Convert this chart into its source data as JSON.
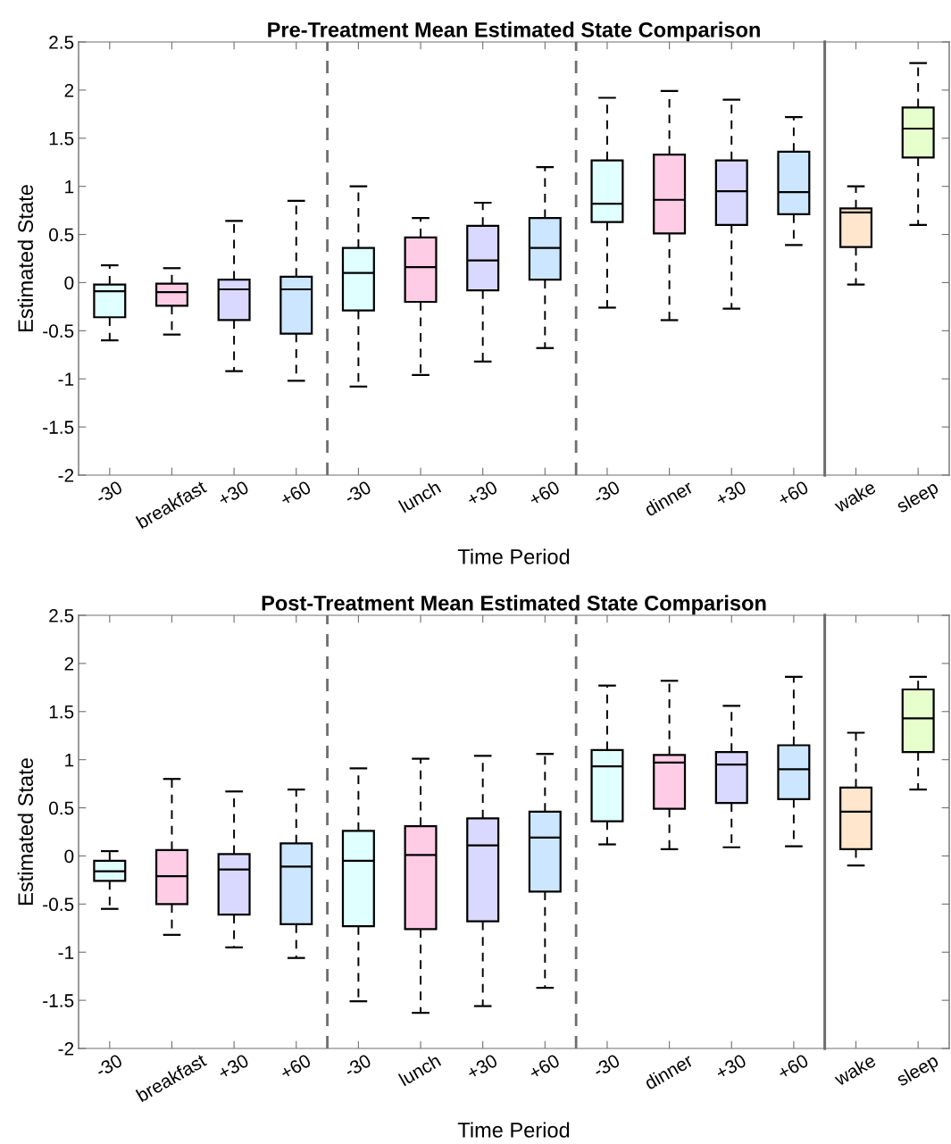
{
  "chart_data": [
    {
      "type": "box",
      "title": "Pre-Treatment Mean Estimated State Comparison",
      "xlabel": "Time Period",
      "ylabel": "Estimated State",
      "categories": [
        "-30",
        "breakfast",
        "+30",
        "+60",
        "-30",
        "lunch",
        "+30",
        "+60",
        "-30",
        "dinner",
        "+30",
        "+60"
      ],
      "colors": [
        "#e0ffff",
        "#ffcce6",
        "#d9d9ff",
        "#cce6ff",
        "#e0ffff",
        "#ffcce6",
        "#d9d9ff",
        "#cce6ff",
        "#e0ffff",
        "#ffcce6",
        "#d9d9ff",
        "#cce6ff"
      ],
      "boxes": [
        {
          "low": -0.6,
          "q1": -0.36,
          "median": -0.09,
          "q3": -0.02,
          "high": 0.18
        },
        {
          "low": -0.54,
          "q1": -0.24,
          "median": -0.1,
          "q3": -0.01,
          "high": 0.15
        },
        {
          "low": -0.92,
          "q1": -0.39,
          "median": -0.07,
          "q3": 0.03,
          "high": 0.64
        },
        {
          "low": -1.02,
          "q1": -0.53,
          "median": -0.07,
          "q3": 0.06,
          "high": 0.85
        },
        {
          "low": -1.08,
          "q1": -0.29,
          "median": 0.1,
          "q3": 0.36,
          "high": 1.0
        },
        {
          "low": -0.96,
          "q1": -0.2,
          "median": 0.16,
          "q3": 0.47,
          "high": 0.67
        },
        {
          "low": -0.82,
          "q1": -0.08,
          "median": 0.23,
          "q3": 0.59,
          "high": 0.83
        },
        {
          "low": -0.68,
          "q1": 0.03,
          "median": 0.36,
          "q3": 0.67,
          "high": 1.2
        },
        {
          "low": -0.26,
          "q1": 0.63,
          "median": 0.82,
          "q3": 1.27,
          "high": 1.92
        },
        {
          "low": -0.39,
          "q1": 0.51,
          "median": 0.86,
          "q3": 1.33,
          "high": 1.99
        },
        {
          "low": -0.27,
          "q1": 0.6,
          "median": 0.95,
          "q3": 1.27,
          "high": 1.9
        },
        {
          "low": 0.39,
          "q1": 0.71,
          "median": 0.94,
          "q3": 1.36,
          "high": 1.72
        }
      ],
      "ylim": [
        -2,
        2.5
      ],
      "yticks": [
        -2,
        -1.5,
        -1,
        -0.5,
        0,
        0.5,
        1,
        1.5,
        2,
        2.5
      ],
      "grid": false,
      "line_style": "dashed"
    },
    {
      "type": "box",
      "categories": [
        "wake",
        "sleep"
      ],
      "colors": [
        "#ffe6cc",
        "#e6ffcc"
      ],
      "boxes": [
        {
          "low": -0.02,
          "q1": 0.37,
          "median": 0.73,
          "q3": 0.77,
          "high": 1.0
        },
        {
          "low": 0.6,
          "q1": 1.3,
          "median": 1.6,
          "q3": 1.82,
          "high": 2.28
        }
      ],
      "ylim": [
        -2,
        2.5
      ],
      "yticks": [
        -2,
        -1.5,
        -1,
        -0.5,
        0,
        0.5,
        1,
        1.5,
        2,
        2.5
      ],
      "tick_labels": "x",
      "grid": false,
      "line_style": "dashed"
    },
    {
      "type": "box",
      "title": "Post-Treatment Mean Estimated State Comparison",
      "xlabel": "Time Period",
      "ylabel": "Estimated State",
      "categories": [
        "-30",
        "breakfast",
        "+30",
        "+60",
        "-30",
        "lunch",
        "+30",
        "+60",
        "-30",
        "dinner",
        "+30",
        "+60"
      ],
      "colors": [
        "#e0ffff",
        "#ffcce6",
        "#d9d9ff",
        "#cce6ff",
        "#e0ffff",
        "#ffcce6",
        "#d9d9ff",
        "#cce6ff",
        "#e0ffff",
        "#ffcce6",
        "#d9d9ff",
        "#cce6ff"
      ],
      "boxes": [
        {
          "low": -0.55,
          "q1": -0.26,
          "median": -0.16,
          "q3": -0.05,
          "high": 0.05
        },
        {
          "low": -0.82,
          "q1": -0.5,
          "median": -0.21,
          "q3": 0.06,
          "high": 0.8
        },
        {
          "low": -0.95,
          "q1": -0.61,
          "median": -0.14,
          "q3": 0.02,
          "high": 0.67
        },
        {
          "low": -1.06,
          "q1": -0.71,
          "median": -0.11,
          "q3": 0.13,
          "high": 0.69
        },
        {
          "low": -1.51,
          "q1": -0.73,
          "median": -0.05,
          "q3": 0.26,
          "high": 0.91
        },
        {
          "low": -1.63,
          "q1": -0.76,
          "median": 0.01,
          "q3": 0.31,
          "high": 1.01
        },
        {
          "low": -1.56,
          "q1": -0.68,
          "median": 0.11,
          "q3": 0.39,
          "high": 1.04
        },
        {
          "low": -1.37,
          "q1": -0.37,
          "median": 0.19,
          "q3": 0.46,
          "high": 1.06
        },
        {
          "low": 0.12,
          "q1": 0.36,
          "median": 0.93,
          "q3": 1.1,
          "high": 1.77
        },
        {
          "low": 0.07,
          "q1": 0.49,
          "median": 0.97,
          "q3": 1.05,
          "high": 1.82
        },
        {
          "low": 0.09,
          "q1": 0.55,
          "median": 0.95,
          "q3": 1.08,
          "high": 1.56
        },
        {
          "low": 0.1,
          "q1": 0.59,
          "median": 0.9,
          "q3": 1.15,
          "high": 1.86
        }
      ],
      "ylim": [
        -2,
        2.5
      ],
      "yticks": [
        -2,
        -1.5,
        -1,
        -0.5,
        0,
        0.5,
        1,
        1.5,
        2,
        2.5
      ],
      "grid": false,
      "line_style": "dashed"
    },
    {
      "type": "box",
      "categories": [
        "wake",
        "sleep"
      ],
      "colors": [
        "#ffe6cc",
        "#e6ffcc"
      ],
      "boxes": [
        {
          "low": -0.1,
          "q1": 0.07,
          "median": 0.46,
          "q3": 0.71,
          "high": 1.28
        },
        {
          "low": 0.69,
          "q1": 1.08,
          "median": 1.43,
          "q3": 1.73,
          "high": 1.86
        }
      ],
      "ylim": [
        -2,
        2.5
      ],
      "yticks": [
        -2,
        -1.5,
        -1,
        -0.5,
        0,
        0.5,
        1,
        1.5,
        2,
        2.5
      ],
      "tick_labels": "x",
      "grid": false,
      "line_style": "dashed"
    }
  ]
}
